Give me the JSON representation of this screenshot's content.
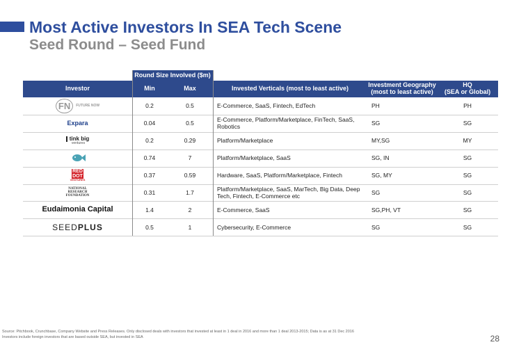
{
  "header": {
    "title": "Most Active Investors In SEA Tech Scene",
    "subtitle": "Seed Round – Seed Fund"
  },
  "table": {
    "group_header": "Round Size Involved ($m)",
    "columns": [
      "Investor",
      "Min",
      "Max",
      "Invested Verticals (most to least active)",
      "Investment Geography\n(most to least active)",
      "HQ\n(SEA or Global)"
    ],
    "rows": [
      {
        "logo": [
          "FN",
          "FUTURE NOW"
        ],
        "min": 0.2,
        "max": 0.5,
        "verticals": "E-Commerce, SaaS, Fintech, EdTech",
        "geography": "PH",
        "hq": "PH"
      },
      {
        "logo": [
          "Expara"
        ],
        "min": 0.04,
        "max": 0.5,
        "verticals": "E-Commerce, Platform/Marketplace, FinTech, SaaS, Robotics",
        "geography": "SG",
        "hq": "SG"
      },
      {
        "logo": [
          "tink big",
          "ventures"
        ],
        "min": 0.2,
        "max": 0.29,
        "verticals": "Platform/Marketplace",
        "geography": "MY,SG",
        "hq": "MY"
      },
      {
        "min": 0.74,
        "max": 7,
        "verticals": "Platform/Marketplace, SaaS",
        "geography": "SG, IN",
        "hq": "SG"
      },
      {
        "logo": [
          "RED",
          "DOT",
          "VENTURES"
        ],
        "min": 0.37,
        "max": 0.59,
        "verticals": "Hardware, SaaS, Platform/Marketplace, Fintech",
        "geography": "SG, MY",
        "hq": "SG"
      },
      {
        "logo": [
          "NATIONAL",
          "RESEARCH",
          "FOUNDATION"
        ],
        "min": 0.31,
        "max": 1.7,
        "verticals": "Platform/Marketplace, SaaS, MarTech, Big Data, Deep Tech, Fintech, E-Commerce etc",
        "geography": "SG",
        "hq": "SG"
      },
      {
        "logo": [
          "Eudaimonia Capital"
        ],
        "min": 1.4,
        "max": 2,
        "verticals": "E-Commerce, SaaS",
        "geography": "SG,PH, VT",
        "hq": "SG"
      },
      {
        "logo": [
          "SEED",
          "PLUS"
        ],
        "min": 0.5,
        "max": 1,
        "verticals": "Cybersecurity, E-Commerce",
        "geography": "SG",
        "hq": "SG"
      }
    ]
  },
  "footer": {
    "source": "Source: Pitchbook, Crunchbase, Company Website and Press Releases. Only disclosed deals with investors that invested at least in 1 deal in 2016 and more than 1 deal 2013-2015; Data is as at 31 Dec 2016",
    "note": "Investors include foreign investors that are based outside SEA, but invested in SEA",
    "page": "28"
  }
}
